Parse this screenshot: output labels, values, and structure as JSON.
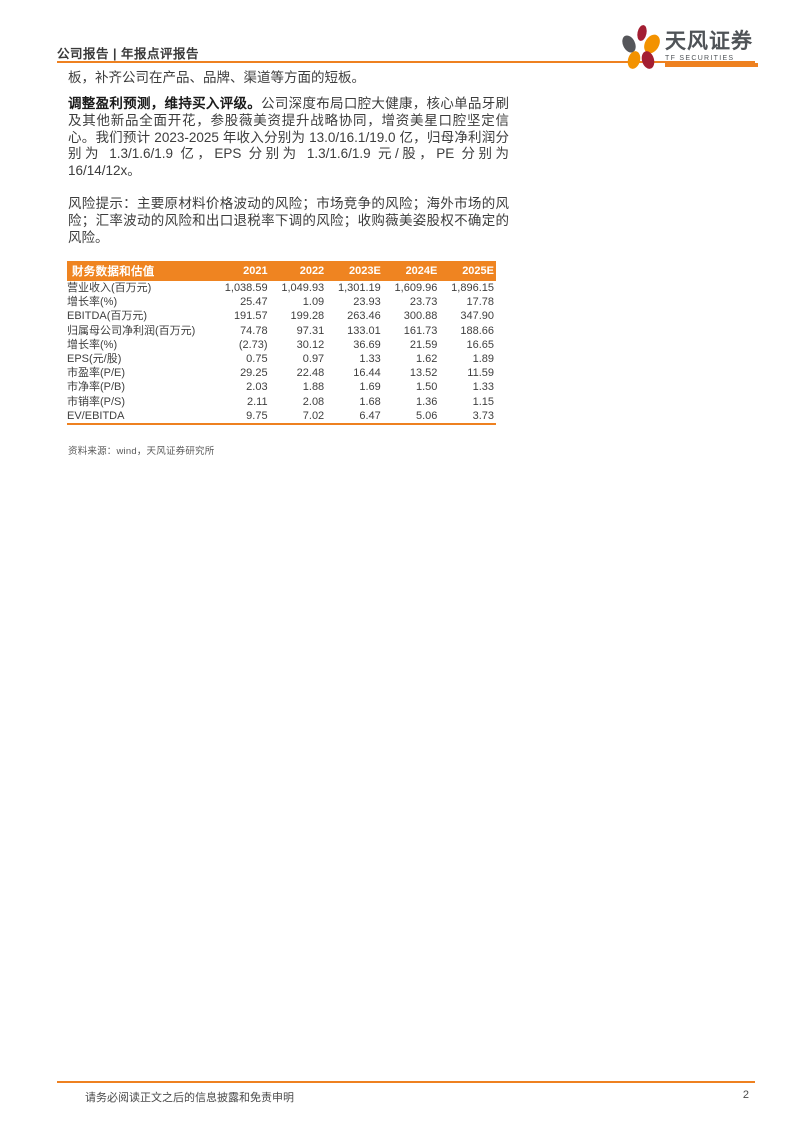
{
  "header": {
    "category": "公司报告 | 年报点评报告",
    "logo": {
      "name_cn": "天风证券",
      "name_en": "TF SECURITIES"
    }
  },
  "body": {
    "para1": "板，补齐公司在产品、品牌、渠道等方面的短板。",
    "para2_lead_bold": "调整盈利预测，维持买入评级。",
    "para2_rest": "公司深度布局口腔大健康，核心单品牙刷及其他新品全面开花，参股薇美资提升战略协同，增资美星口腔坚定信心。我们预计 2023-2025 年收入分别为 13.0/16.1/19.0 亿，归母净利润分别为 1.3/1.6/1.9 亿，EPS 分别为 1.3/1.6/1.9 元/股，PE 分别为 16/14/12x。",
    "para3": "风险提示：主要原材料价格波动的风险；市场竞争的风险；海外市场的风险；汇率波动的风险和出口退税率下调的风险；收购薇美姿股权不确定的风险。"
  },
  "table": {
    "title": "财务数据和估值",
    "columns": [
      "2021",
      "2022",
      "2023E",
      "2024E",
      "2025E"
    ],
    "rows": [
      {
        "label": "营业收入(百万元)",
        "values": [
          "1,038.59",
          "1,049.93",
          "1,301.19",
          "1,609.96",
          "1,896.15"
        ]
      },
      {
        "label": "增长率(%)",
        "values": [
          "25.47",
          "1.09",
          "23.93",
          "23.73",
          "17.78"
        ]
      },
      {
        "label": "EBITDA(百万元)",
        "values": [
          "191.57",
          "199.28",
          "263.46",
          "300.88",
          "347.90"
        ]
      },
      {
        "label": "归属母公司净利润(百万元)",
        "values": [
          "74.78",
          "97.31",
          "133.01",
          "161.73",
          "188.66"
        ]
      },
      {
        "label": "增长率(%)",
        "values": [
          "(2.73)",
          "30.12",
          "36.69",
          "21.59",
          "16.65"
        ]
      },
      {
        "label": "EPS(元/股)",
        "values": [
          "0.75",
          "0.97",
          "1.33",
          "1.62",
          "1.89"
        ]
      },
      {
        "label": "市盈率(P/E)",
        "values": [
          "29.25",
          "22.48",
          "16.44",
          "13.52",
          "11.59"
        ]
      },
      {
        "label": "市净率(P/B)",
        "values": [
          "2.03",
          "1.88",
          "1.69",
          "1.50",
          "1.33"
        ]
      },
      {
        "label": "市销率(P/S)",
        "values": [
          "2.11",
          "2.08",
          "1.68",
          "1.36",
          "1.15"
        ]
      },
      {
        "label": "EV/EBITDA",
        "values": [
          "9.75",
          "7.02",
          "6.47",
          "5.06",
          "3.73"
        ]
      }
    ],
    "source": "资料来源：wind，天风证券研究所"
  },
  "footer": {
    "disclaimer": "请务必阅读正文之后的信息披露和免责申明",
    "page_number": "2"
  },
  "colors": {
    "accent_orange": "#ee8120",
    "table_header_bg": "#ef8421",
    "logo_orange": "#f39200",
    "logo_maroon": "#a31e32",
    "logo_gray": "#55565a"
  }
}
